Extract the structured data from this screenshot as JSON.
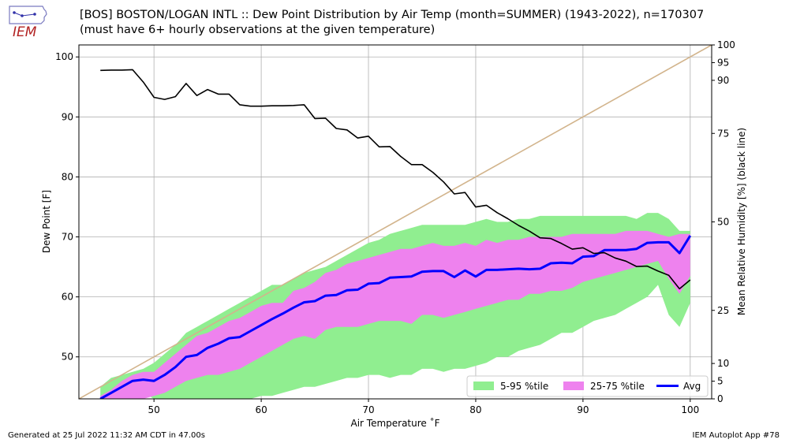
{
  "header": {
    "title_line1": "[BOS] BOSTON/LOGAN INTL :: Dew Point Distribution by Air Temp (month=SUMMER) (1943-2022), n=170307",
    "title_line2": "(must have 6+ hourly observations at the given temperature)"
  },
  "logo": {
    "text": "IEM"
  },
  "footer": {
    "generated": "Generated at 25 Jul 2022 11:32 AM CDT in 47.00s",
    "app": "IEM Autoplot App #78"
  },
  "colors": {
    "p5_95": "#90ee90",
    "p25_75": "#ee82ee",
    "avg": "#0000ff",
    "rh": "#000000",
    "diag": "#d2b48c"
  },
  "chart_data": {
    "type": "line",
    "xlabel": "Air Temperature ˚F",
    "ylabel": "Dew Point [F]",
    "y2label": "Mean Relative Humidity [%] (black line)",
    "xlim": [
      43,
      102
    ],
    "ylim": [
      43,
      102
    ],
    "x_ticks": [
      50,
      60,
      70,
      80,
      90,
      100
    ],
    "y_ticks": [
      50,
      60,
      70,
      80,
      90,
      100
    ],
    "y2_ticks": [
      0,
      5,
      10,
      25,
      50,
      75,
      90,
      95,
      100
    ],
    "grid": true,
    "legend_position": "bottom-right",
    "legend": [
      "5-95 %tile",
      "25-75 %tile",
      "Avg"
    ],
    "x": [
      45,
      46,
      47,
      48,
      49,
      50,
      51,
      52,
      53,
      54,
      55,
      56,
      57,
      58,
      59,
      60,
      61,
      62,
      63,
      64,
      65,
      66,
      67,
      68,
      69,
      70,
      71,
      72,
      73,
      74,
      75,
      76,
      77,
      78,
      79,
      80,
      81,
      82,
      83,
      84,
      85,
      86,
      87,
      88,
      89,
      90,
      91,
      92,
      93,
      94,
      95,
      96,
      97,
      98,
      99,
      100
    ],
    "avg": [
      43.0,
      44.0,
      45.0,
      46.0,
      46.2,
      46.0,
      47.0,
      48.3,
      50.0,
      50.3,
      51.5,
      52.2,
      53.1,
      53.3,
      54.3,
      55.3,
      56.3,
      57.2,
      58.2,
      59.1,
      59.3,
      60.2,
      60.3,
      61.1,
      61.2,
      62.2,
      62.3,
      63.2,
      63.3,
      63.4,
      64.2,
      64.3,
      64.3,
      63.3,
      64.4,
      63.4,
      64.5,
      64.5,
      64.6,
      64.7,
      64.6,
      64.7,
      65.6,
      65.7,
      65.6,
      66.7,
      66.8,
      67.8,
      67.8,
      67.8,
      68.0,
      69.0,
      69.1,
      69.1,
      67.3,
      70.2
    ],
    "p5": [
      43,
      43,
      43,
      44,
      44,
      43,
      43,
      43,
      43,
      43,
      43,
      43,
      43,
      43,
      43,
      43.5,
      43.5,
      44,
      44.5,
      45,
      45,
      45.5,
      46,
      46.5,
      46.5,
      47,
      47,
      46.5,
      47,
      47,
      48,
      48,
      47.5,
      48,
      48,
      48.5,
      49,
      50,
      50,
      51,
      51.5,
      52,
      53,
      54,
      54,
      55,
      56,
      56.5,
      57,
      58,
      59,
      60,
      62,
      57,
      55,
      59
    ],
    "p25": [
      43,
      43,
      43,
      43,
      43,
      43.5,
      44,
      45,
      46,
      46.5,
      47,
      47,
      47.5,
      48,
      49,
      50,
      51,
      52,
      53,
      53.5,
      53,
      54.5,
      55,
      55,
      55,
      55.5,
      56,
      56,
      56,
      55.5,
      57,
      57,
      56.5,
      57,
      57.5,
      58,
      58.5,
      59,
      59.5,
      59.5,
      60.5,
      60.5,
      61,
      61,
      61.5,
      62.5,
      63,
      63.5,
      64,
      64.5,
      65,
      65.5,
      66,
      63,
      60.5,
      63.5
    ],
    "p75": [
      43.5,
      44.5,
      46,
      47,
      47.5,
      47.5,
      49,
      50.5,
      52,
      53.5,
      54,
      55,
      56,
      56.5,
      57.5,
      58.5,
      59,
      59,
      61,
      61.5,
      62.5,
      64,
      64.5,
      65.5,
      66,
      66.5,
      67,
      67.5,
      68,
      68,
      68.5,
      69,
      68.5,
      68.5,
      69,
      68.5,
      69.5,
      69,
      69.5,
      69.5,
      70,
      70,
      70,
      70,
      70.5,
      70.5,
      70.5,
      70.5,
      70.5,
      71,
      71,
      71,
      70.5,
      70,
      70.5,
      70.5
    ],
    "p95": [
      45,
      46.5,
      47,
      47.5,
      48,
      49,
      50.5,
      52,
      54,
      55,
      56,
      57,
      58,
      59,
      60,
      61,
      62,
      62,
      63,
      64,
      64.5,
      65,
      66,
      67,
      68,
      69,
      69.5,
      70.5,
      71,
      71.5,
      72,
      72,
      72,
      72,
      72,
      72.5,
      73,
      72.5,
      72.5,
      73,
      73,
      73.5,
      73.5,
      73.5,
      73.5,
      73.5,
      73.5,
      73.5,
      73.5,
      73.5,
      73,
      74,
      74,
      73,
      71,
      71
    ],
    "rh": [
      92.8,
      92.9,
      92.9,
      93.0,
      89.5,
      85.2,
      84.6,
      85.4,
      89.1,
      85.7,
      87.4,
      86.1,
      86.1,
      83.1,
      82.7,
      82.7,
      82.8,
      82.8,
      82.9,
      83.1,
      79.2,
      79.3,
      76.4,
      76.0,
      73.7,
      74.2,
      71.2,
      71.3,
      68.5,
      66.2,
      66.2,
      64.0,
      61.3,
      57.9,
      58.3,
      54.2,
      54.7,
      52.6,
      50.9,
      49.0,
      47.4,
      45.5,
      45.3,
      43.9,
      42.3,
      42.7,
      41.1,
      41.3,
      39.8,
      38.9,
      37.4,
      37.5,
      36.1,
      34.9,
      31.1,
      33.6
    ]
  }
}
